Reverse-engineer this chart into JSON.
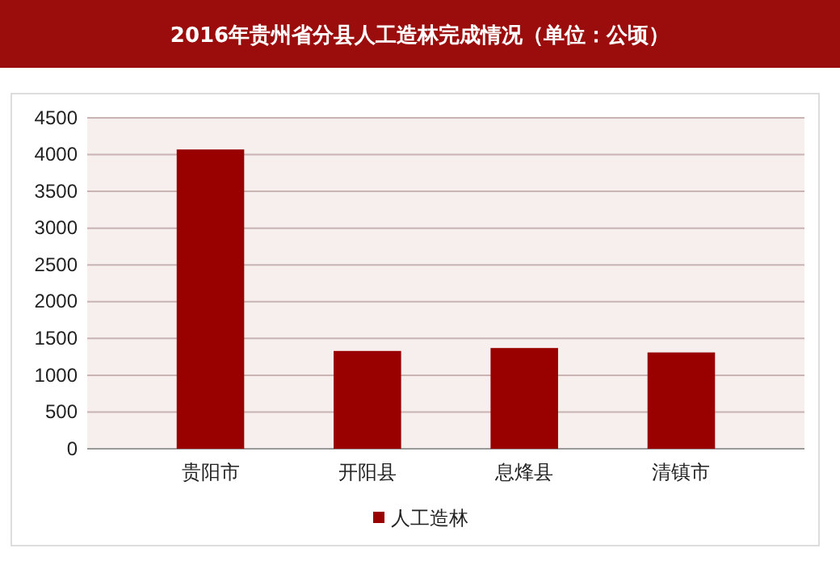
{
  "chart_data": {
    "type": "bar",
    "title": "2016年贵州省分县人工造林完成情况（单位：公顷）",
    "categories": [
      "贵阳市",
      "开阳县",
      "息烽县",
      "清镇市"
    ],
    "series": [
      {
        "name": "人工造林",
        "color": "#990000",
        "values": [
          4070,
          1330,
          1370,
          1310
        ]
      }
    ],
    "ylim": [
      0,
      4500
    ],
    "yticks": [
      0,
      500,
      1000,
      1500,
      2000,
      2500,
      3000,
      3500,
      4000,
      4500
    ],
    "grid": "y",
    "legend": "bottom"
  }
}
